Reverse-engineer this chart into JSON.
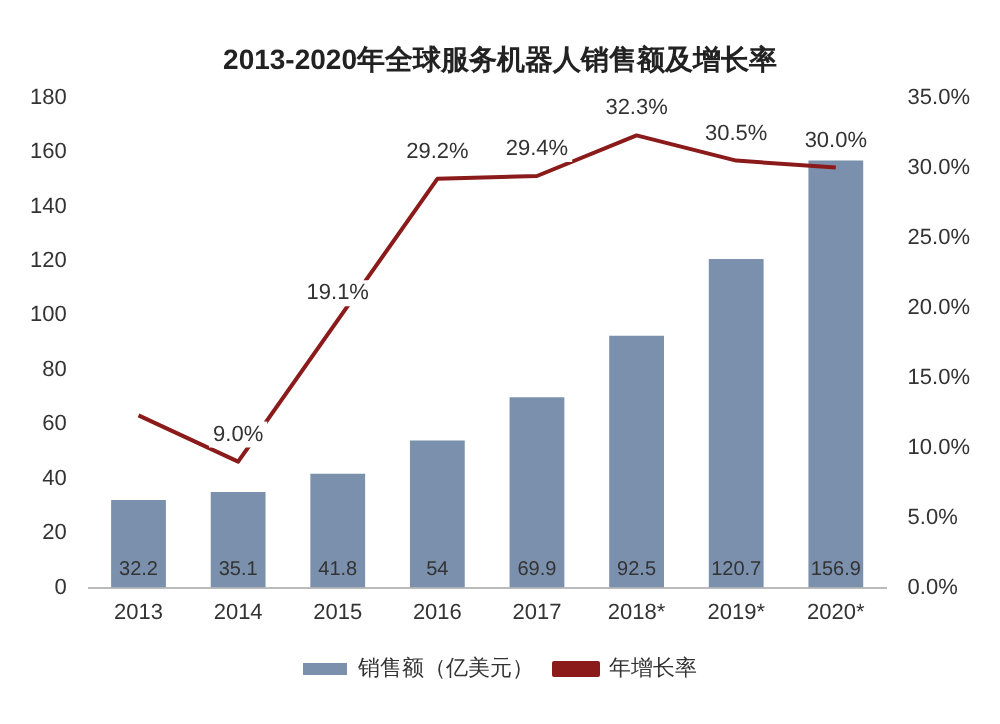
{
  "chart_data": {
    "type": "bar",
    "title": "2013-2020年全球服务机器人销售额及增长率",
    "categories": [
      "2013",
      "2014",
      "2015",
      "2016",
      "2017",
      "2018*",
      "2019*",
      "2020*"
    ],
    "series": [
      {
        "name": "销售额（亿美元）",
        "color": "#7b90ad",
        "values": [
          32.2,
          35.1,
          41.8,
          54,
          69.9,
          92.5,
          120.7,
          156.9
        ],
        "value_labels": [
          "32.2",
          "35.1",
          "41.8",
          "54",
          "69.9",
          "92.5",
          "120.7",
          "156.9"
        ]
      },
      {
        "name": "年增长率",
        "type": "line",
        "axis": "y2",
        "color": "#8b1a1a",
        "values": [
          12.3,
          9.0,
          19.1,
          29.2,
          29.4,
          32.3,
          30.5,
          30.0
        ],
        "value_labels": [
          null,
          "9.0%",
          "19.1%",
          "29.2%",
          "29.4%",
          "32.3%",
          "30.5%",
          "30.0%"
        ]
      }
    ],
    "ylim": [
      0,
      180
    ],
    "yticks": [
      0,
      20,
      40,
      60,
      80,
      100,
      120,
      140,
      160,
      180
    ],
    "y2lim": [
      0,
      35
    ],
    "y2ticks": [
      {
        "value": 0,
        "label": "0.0%"
      },
      {
        "value": 5,
        "label": "5.0%"
      },
      {
        "value": 10,
        "label": "10.0%"
      },
      {
        "value": 15,
        "label": "15.0%"
      },
      {
        "value": 20,
        "label": "20.0%"
      },
      {
        "value": 25,
        "label": "25.0%"
      },
      {
        "value": 30,
        "label": "30.0%"
      },
      {
        "value": 35,
        "label": "35.0%"
      }
    ],
    "grid": false,
    "legend": "bottom",
    "marker": "none"
  }
}
